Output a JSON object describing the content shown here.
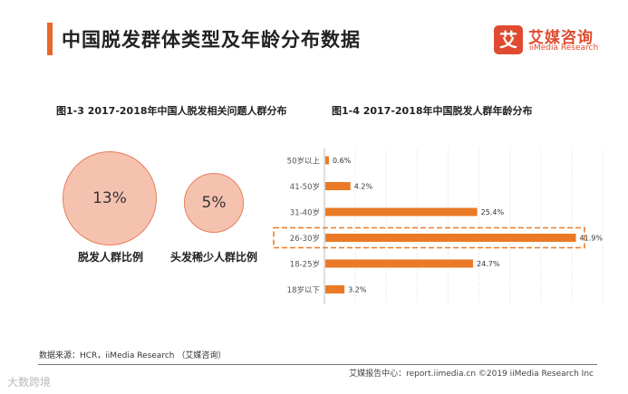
{
  "header": {
    "title": "中国脱发群体类型及年龄分布数据",
    "logo": {
      "badge": "艾",
      "cn": "艾媒咨询",
      "en": "iiMedia Research"
    }
  },
  "left_panel": {
    "title": "图1-3 2017-2018年中国人脱发相关问题人群分布",
    "bubbles": [
      {
        "value": "13%",
        "label": "脱发人群比例"
      },
      {
        "value": "5%",
        "label": "头发稀少人群比例"
      }
    ]
  },
  "right_panel": {
    "title": "图1-4 2017-2018年中国脱发人群年龄分布"
  },
  "chart_data": {
    "type": "bar",
    "orientation": "horizontal",
    "title": "图1-4 2017-2018年中国脱发人群年龄分布",
    "categories": [
      "50岁以上",
      "41-50岁",
      "31-40岁",
      "26-30岁",
      "18-25岁",
      "18岁以下"
    ],
    "values": [
      0.6,
      4.2,
      25.4,
      41.9,
      24.7,
      3.2
    ],
    "value_labels": [
      "0.6%",
      "4.2%",
      "25.4%",
      "41.9%",
      "24.7%",
      "3.2%"
    ],
    "xlim": [
      0,
      45
    ],
    "highlight": "26-30岁",
    "bar_color": "#ea7a26",
    "highlight_color": "#ea7a26",
    "grid": true
  },
  "footer": {
    "source": "数据来源：HCR，iiMedia Research （艾媒咨询）",
    "right": "艾媒报告中心：report.iimedia.cn ©2019 iiMedia Research Inc",
    "watermark": "大数跨境"
  }
}
